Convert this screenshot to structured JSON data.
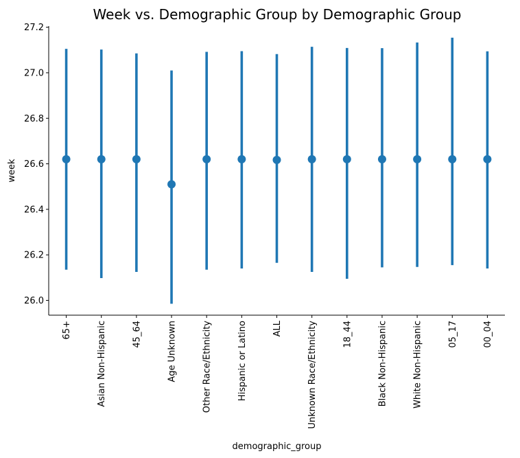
{
  "chart_data": {
    "type": "pointplot",
    "title": "Week vs. Demographic Group by Demographic Group",
    "xlabel": "demographic_group",
    "ylabel": "week",
    "ylim": [
      25.935,
      27.205
    ],
    "yticks": [
      26.0,
      26.2,
      26.4,
      26.6,
      26.8,
      27.0,
      27.2
    ],
    "grid": false,
    "legend": "none",
    "color": "#1f77b4",
    "categories": [
      "65+",
      "Asian Non-Hispanic",
      "45_64",
      "Age Unknown",
      "Other Race/Ethnicity",
      "Hispanic or Latino",
      "ALL",
      "Unknown Race/Ethnicity",
      "18_44",
      "Black Non-Hispanic",
      "White Non-Hispanic",
      "05_17",
      "00_04"
    ],
    "series": [
      {
        "values": [
          26.62,
          26.62,
          26.62,
          26.51,
          26.62,
          26.62,
          26.617,
          26.62,
          26.62,
          26.62,
          26.62,
          26.62,
          26.62
        ],
        "ci_low": [
          26.135,
          26.098,
          26.125,
          25.985,
          26.135,
          26.14,
          26.165,
          26.125,
          26.095,
          26.145,
          26.147,
          26.155,
          26.14
        ],
        "ci_high": [
          27.105,
          27.102,
          27.085,
          27.01,
          27.092,
          27.095,
          27.082,
          27.114,
          27.109,
          27.108,
          27.133,
          27.154,
          27.094
        ]
      }
    ]
  }
}
